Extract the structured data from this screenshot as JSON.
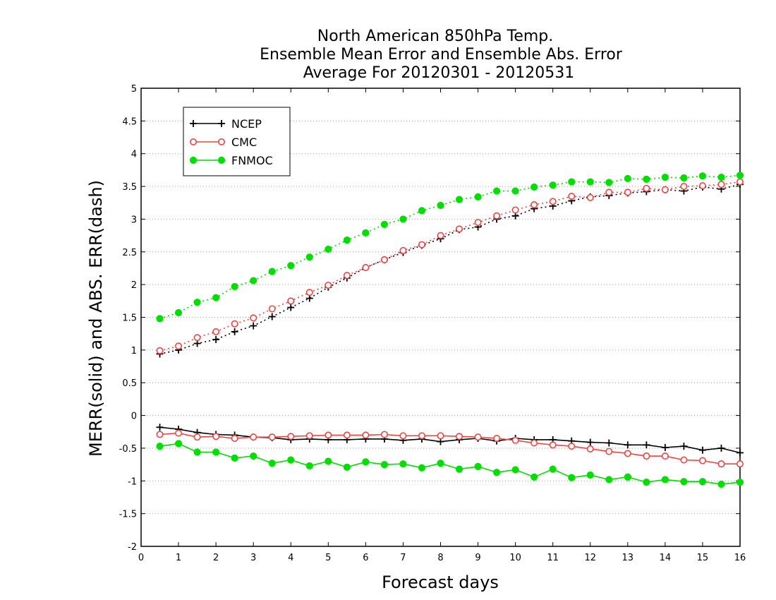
{
  "chart_data": {
    "type": "line",
    "title_lines": [
      "North American 850hPa Temp.",
      "Ensemble Mean Error and Ensemble Abs. Error",
      "Average For 20120301 - 20120531"
    ],
    "xlabel": "Forecast days",
    "ylabel": "MERR(solid) and ABS. ERR(dash)",
    "xlim": [
      0,
      16
    ],
    "ylim": [
      -2,
      5
    ],
    "x_ticks": [
      0,
      1,
      2,
      3,
      4,
      5,
      6,
      7,
      8,
      9,
      10,
      11,
      12,
      13,
      14,
      15,
      16
    ],
    "y_ticks": [
      -2,
      -1.5,
      -1,
      -0.5,
      0,
      0.5,
      1,
      1.5,
      2,
      2.5,
      3,
      3.5,
      4,
      4.5,
      5
    ],
    "y_tick_labels": [
      "-2",
      "-1.5",
      "-1",
      "-0.5",
      "0",
      "0.5",
      "1",
      "1.5",
      "2",
      "2.5",
      "3",
      "3.5",
      "4",
      "4.5",
      "5"
    ],
    "grid": "horizontal dotted",
    "legend_position": "top-left",
    "x": [
      0.5,
      1,
      1.5,
      2,
      2.5,
      3,
      3.5,
      4,
      4.5,
      5,
      5.5,
      6,
      6.5,
      7,
      7.5,
      8,
      8.5,
      9,
      9.5,
      10,
      10.5,
      11,
      11.5,
      12,
      12.5,
      13,
      13.5,
      14,
      14.5,
      15,
      15.5,
      16
    ],
    "series": [
      {
        "name": "NCEP",
        "color": "#000000",
        "marker": "plus",
        "merr": [
          -0.18,
          -0.21,
          -0.26,
          -0.29,
          -0.3,
          -0.33,
          -0.34,
          -0.37,
          -0.36,
          -0.37,
          -0.37,
          -0.36,
          -0.36,
          -0.38,
          -0.36,
          -0.4,
          -0.37,
          -0.35,
          -0.39,
          -0.35,
          -0.37,
          -0.37,
          -0.39,
          -0.41,
          -0.42,
          -0.45,
          -0.45,
          -0.49,
          -0.47,
          -0.53,
          -0.5,
          -0.57
        ],
        "abserr": [
          0.94,
          1.0,
          1.1,
          1.16,
          1.28,
          1.37,
          1.51,
          1.65,
          1.79,
          1.96,
          2.1,
          2.26,
          2.38,
          2.49,
          2.6,
          2.7,
          2.84,
          2.88,
          3.0,
          3.05,
          3.16,
          3.2,
          3.28,
          3.34,
          3.36,
          3.4,
          3.42,
          3.45,
          3.43,
          3.49,
          3.46,
          3.53
        ]
      },
      {
        "name": "CMC",
        "color": "#ee4444",
        "marker": "circle-open",
        "merr": [
          -0.29,
          -0.27,
          -0.33,
          -0.32,
          -0.35,
          -0.33,
          -0.33,
          -0.32,
          -0.31,
          -0.3,
          -0.3,
          -0.3,
          -0.29,
          -0.31,
          -0.31,
          -0.31,
          -0.32,
          -0.33,
          -0.35,
          -0.38,
          -0.42,
          -0.45,
          -0.47,
          -0.51,
          -0.55,
          -0.58,
          -0.62,
          -0.62,
          -0.68,
          -0.69,
          -0.74,
          -0.74
        ],
        "abserr": [
          0.99,
          1.06,
          1.19,
          1.28,
          1.4,
          1.49,
          1.63,
          1.75,
          1.88,
          1.99,
          2.14,
          2.26,
          2.38,
          2.52,
          2.61,
          2.75,
          2.85,
          2.95,
          3.05,
          3.14,
          3.22,
          3.27,
          3.35,
          3.33,
          3.41,
          3.41,
          3.47,
          3.45,
          3.5,
          3.51,
          3.53,
          3.57
        ]
      },
      {
        "name": "FNMOC",
        "color": "#00dd00",
        "marker": "circle-filled",
        "merr": [
          -0.47,
          -0.43,
          -0.56,
          -0.56,
          -0.65,
          -0.62,
          -0.73,
          -0.68,
          -0.77,
          -0.7,
          -0.79,
          -0.71,
          -0.75,
          -0.74,
          -0.8,
          -0.73,
          -0.82,
          -0.78,
          -0.87,
          -0.83,
          -0.94,
          -0.82,
          -0.95,
          -0.91,
          -0.98,
          -0.94,
          -1.02,
          -0.98,
          -1.01,
          -1.01,
          -1.05,
          -1.02
        ],
        "abserr": [
          1.48,
          1.57,
          1.73,
          1.8,
          1.97,
          2.06,
          2.2,
          2.29,
          2.42,
          2.54,
          2.68,
          2.79,
          2.92,
          3.0,
          3.13,
          3.21,
          3.3,
          3.34,
          3.43,
          3.43,
          3.49,
          3.52,
          3.57,
          3.57,
          3.56,
          3.62,
          3.61,
          3.64,
          3.63,
          3.66,
          3.64,
          3.67
        ]
      }
    ]
  }
}
